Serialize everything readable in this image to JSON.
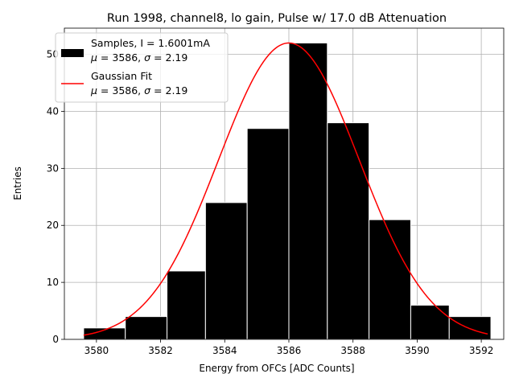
{
  "chart_data": {
    "type": "bar",
    "title": "Run 1998, channel8, lo gain, Pulse w/ 17.0 dB Attenuation",
    "xlabel": "Energy from OFCs [ADC Counts]",
    "ylabel": "Entries",
    "xlim": [
      3579.0,
      3592.7
    ],
    "ylim": [
      0,
      54.6
    ],
    "grid": true,
    "xticks": [
      3580,
      3582,
      3584,
      3586,
      3588,
      3590,
      3592
    ],
    "yticks": [
      0,
      10,
      20,
      30,
      40,
      50
    ],
    "histogram": {
      "bin_edges": [
        3579.6,
        3580.9,
        3582.2,
        3583.4,
        3584.7,
        3586.0,
        3587.2,
        3588.5,
        3589.8,
        3591.0,
        3592.3
      ],
      "counts": [
        2,
        4,
        12,
        24,
        37,
        52,
        38,
        21,
        6,
        4
      ],
      "color": "#000000",
      "edge_color": "#ffffff"
    },
    "gaussian_fit": {
      "mu": 3586.0,
      "sigma": 2.19,
      "amplitude": 52.0,
      "x_range": [
        3579.6,
        3592.2
      ],
      "color": "#ff0000"
    },
    "legend": {
      "placement": "top-left",
      "entries": [
        {
          "line1": "Samples, I = 1.6001mA",
          "mu_label": "μ",
          "mu_value": " = 3586, ",
          "sigma_label": "σ",
          "sigma_value": " = 2.19",
          "marker": "patch"
        },
        {
          "line1": "Gaussian Fit",
          "mu_label": "μ",
          "mu_value": " = 3586, ",
          "sigma_label": "σ",
          "sigma_value": " = 2.19",
          "marker": "line"
        }
      ]
    }
  }
}
